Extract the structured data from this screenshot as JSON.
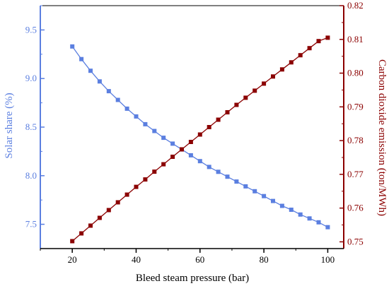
{
  "chart_data": {
    "type": "line",
    "title": "",
    "xlabel": "Bleed steam pressure (bar)",
    "ylabel_left": "Solar share (%)",
    "ylabel_right": "Carbon dioxide emission (ton/MWh)",
    "xlim": [
      10,
      105
    ],
    "ylim_left": [
      7.25,
      9.75
    ],
    "ylim_right": [
      0.748,
      0.82
    ],
    "x_ticks": [
      20,
      40,
      60,
      80,
      100
    ],
    "y_left_ticks": [
      7.5,
      8.0,
      8.5,
      9.0,
      9.5
    ],
    "y_right_ticks": [
      0.75,
      0.76,
      0.77,
      0.78,
      0.79,
      0.8,
      0.81,
      0.82
    ],
    "x": [
      20,
      22.857,
      25.714,
      28.571,
      31.429,
      34.286,
      37.143,
      40,
      42.857,
      45.714,
      48.571,
      51.429,
      54.286,
      57.143,
      60,
      62.857,
      65.714,
      68.571,
      71.429,
      74.286,
      77.143,
      80,
      82.857,
      85.714,
      88.571,
      91.429,
      94.286,
      97.143,
      100
    ],
    "grid": false,
    "series": [
      {
        "name": "Solar share (%)",
        "axis": "left",
        "color": "#5b7fe0",
        "marker": "square",
        "values": [
          9.33,
          9.2,
          9.08,
          8.97,
          8.87,
          8.78,
          8.69,
          8.61,
          8.53,
          8.46,
          8.39,
          8.33,
          8.27,
          8.21,
          8.15,
          8.09,
          8.04,
          7.99,
          7.94,
          7.89,
          7.84,
          7.79,
          7.74,
          7.69,
          7.65,
          7.6,
          7.56,
          7.52,
          7.47
        ]
      },
      {
        "name": "Carbon dioxide emission (ton/MWh)",
        "axis": "right",
        "color": "#8b0000",
        "marker": "square",
        "values": [
          0.7502,
          0.7525,
          0.7548,
          0.7571,
          0.7594,
          0.7617,
          0.764,
          0.7663,
          0.7685,
          0.7708,
          0.773,
          0.7752,
          0.7774,
          0.7796,
          0.7818,
          0.784,
          0.7862,
          0.7884,
          0.7906,
          0.7927,
          0.7948,
          0.7969,
          0.799,
          0.8011,
          0.8032,
          0.8053,
          0.8074,
          0.8095,
          0.8105
        ]
      }
    ],
    "colors": {
      "left_axis": "#5b7fe0",
      "right_axis": "#8b0000",
      "bottom_axis": "#000000"
    }
  }
}
